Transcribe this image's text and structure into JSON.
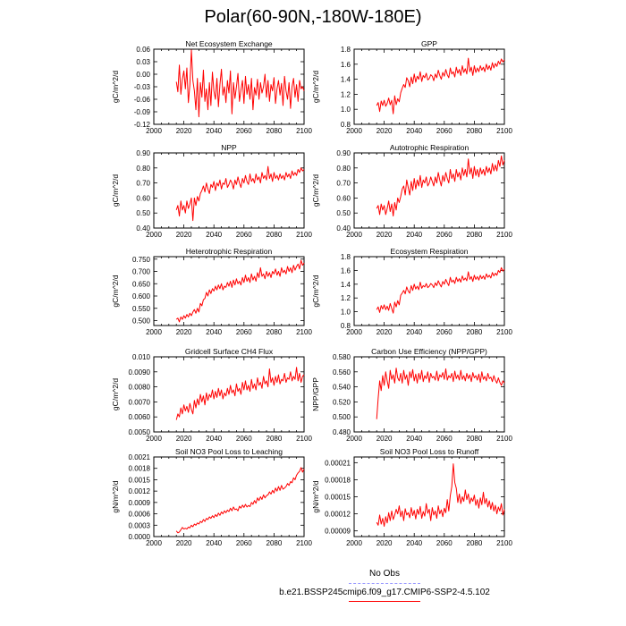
{
  "title": "Polar(60-90N,-180W-180E)",
  "colors": {
    "series": "#ff0000",
    "obs_line": "#9999ff",
    "axis": "#000000"
  },
  "legend": {
    "obs_label": "No Obs",
    "model_label": "b.e21.BSSP245cmip6.f09_g17.CMIP6-SSP2-4.5.102"
  },
  "chart_data": [
    {
      "type": "line",
      "title": "Net Ecosystem Exchange",
      "ylabel": "gC/m^2/d",
      "xlim": [
        2000,
        2100
      ],
      "ylim": [
        -0.12,
        0.06
      ],
      "xticks": [
        2000,
        2020,
        2040,
        2060,
        2080,
        2100
      ],
      "yticks": [
        -0.12,
        -0.09,
        -0.06,
        -0.03,
        0.0,
        0.03,
        0.06
      ],
      "ytick_labels": [
        "-0.12",
        "-0.09",
        "-0.06",
        "-0.03",
        "0.00",
        "0.03",
        "0.06"
      ],
      "start_year": 2015,
      "values": [
        -0.018,
        -0.042,
        0.022,
        -0.048,
        -0.012,
        0.008,
        -0.035,
        0.015,
        -0.068,
        -0.025,
        0.058,
        -0.015,
        -0.04,
        -0.085,
        -0.01,
        -0.102,
        -0.02,
        -0.055,
        0.01,
        -0.065,
        -0.035,
        -0.085,
        -0.02,
        -0.075,
        0.005,
        -0.04,
        -0.06,
        -0.01,
        -0.078,
        -0.025,
        0.012,
        -0.05,
        -0.03,
        -0.068,
        -0.015,
        -0.045,
        0.008,
        -0.095,
        -0.02,
        -0.058,
        -0.03,
        0.002,
        -0.065,
        -0.038,
        -0.015,
        -0.07,
        -0.005,
        -0.048,
        -0.025,
        -0.06,
        -0.01,
        -0.085,
        -0.032,
        -0.05,
        -0.012,
        -0.06,
        -0.02,
        -0.045,
        -0.03,
        0.0,
        -0.055,
        -0.015,
        -0.065,
        -0.025,
        -0.04,
        -0.008,
        -0.07,
        -0.035,
        -0.015,
        -0.05,
        -0.022,
        -0.075,
        -0.005,
        -0.04,
        -0.06,
        -0.02,
        -0.082,
        -0.03,
        -0.01,
        -0.055,
        -0.025,
        -0.065,
        -0.015,
        -0.035,
        -0.03,
        -0.04
      ]
    },
    {
      "type": "line",
      "title": "GPP",
      "ylabel": "gC/m^2/d",
      "xlim": [
        2000,
        2100
      ],
      "ylim": [
        0.8,
        1.8
      ],
      "xticks": [
        2000,
        2020,
        2040,
        2060,
        2080,
        2100
      ],
      "yticks": [
        0.8,
        1.0,
        1.2,
        1.4,
        1.6,
        1.8
      ],
      "ytick_labels": [
        "0.8",
        "1.0",
        "1.2",
        "1.4",
        "1.6",
        "1.8"
      ],
      "start_year": 2015,
      "values": [
        1.05,
        1.09,
        0.97,
        1.11,
        1.05,
        1.12,
        1.04,
        1.08,
        1.15,
        1.06,
        1.12,
        0.94,
        1.18,
        1.06,
        1.14,
        1.1,
        1.22,
        1.28,
        1.33,
        1.29,
        1.42,
        1.38,
        1.3,
        1.43,
        1.34,
        1.47,
        1.36,
        1.44,
        1.4,
        1.5,
        1.37,
        1.45,
        1.42,
        1.48,
        1.39,
        1.41,
        1.46,
        1.44,
        1.38,
        1.47,
        1.42,
        1.52,
        1.45,
        1.4,
        1.49,
        1.44,
        1.53,
        1.46,
        1.42,
        1.55,
        1.47,
        1.5,
        1.43,
        1.56,
        1.48,
        1.53,
        1.45,
        1.58,
        1.49,
        1.54,
        1.47,
        1.68,
        1.5,
        1.56,
        1.45,
        1.58,
        1.49,
        1.55,
        1.5,
        1.58,
        1.52,
        1.56,
        1.5,
        1.6,
        1.53,
        1.58,
        1.52,
        1.62,
        1.55,
        1.61,
        1.57,
        1.64,
        1.6,
        1.67,
        1.63,
        1.66
      ]
    },
    {
      "type": "line",
      "title": "NPP",
      "ylabel": "gC/m^2/d",
      "xlim": [
        2000,
        2100
      ],
      "ylim": [
        0.4,
        0.9
      ],
      "xticks": [
        2000,
        2020,
        2040,
        2060,
        2080,
        2100
      ],
      "yticks": [
        0.4,
        0.5,
        0.6,
        0.7,
        0.8,
        0.9
      ],
      "ytick_labels": [
        "0.40",
        "0.50",
        "0.60",
        "0.70",
        "0.80",
        "0.90"
      ],
      "start_year": 2015,
      "values": [
        0.52,
        0.55,
        0.48,
        0.58,
        0.52,
        0.55,
        0.5,
        0.58,
        0.53,
        0.56,
        0.6,
        0.45,
        0.6,
        0.55,
        0.61,
        0.58,
        0.63,
        0.65,
        0.68,
        0.64,
        0.7,
        0.66,
        0.63,
        0.69,
        0.67,
        0.71,
        0.65,
        0.7,
        0.68,
        0.72,
        0.66,
        0.7,
        0.69,
        0.73,
        0.67,
        0.69,
        0.72,
        0.7,
        0.66,
        0.72,
        0.69,
        0.74,
        0.7,
        0.67,
        0.73,
        0.7,
        0.75,
        0.71,
        0.69,
        0.76,
        0.71,
        0.73,
        0.7,
        0.76,
        0.72,
        0.74,
        0.7,
        0.77,
        0.73,
        0.75,
        0.72,
        0.81,
        0.73,
        0.76,
        0.71,
        0.77,
        0.73,
        0.75,
        0.72,
        0.76,
        0.73,
        0.75,
        0.72,
        0.77,
        0.74,
        0.76,
        0.73,
        0.78,
        0.75,
        0.77,
        0.75,
        0.79,
        0.77,
        0.8,
        0.78,
        0.79
      ]
    },
    {
      "type": "line",
      "title": "Autotrophic Respiration",
      "ylabel": "gC/m^2/d",
      "xlim": [
        2000,
        2100
      ],
      "ylim": [
        0.4,
        0.9
      ],
      "xticks": [
        2000,
        2020,
        2040,
        2060,
        2080,
        2100
      ],
      "yticks": [
        0.4,
        0.5,
        0.6,
        0.7,
        0.8,
        0.9
      ],
      "ytick_labels": [
        "0.40",
        "0.50",
        "0.60",
        "0.70",
        "0.80",
        "0.90"
      ],
      "start_year": 2015,
      "values": [
        0.53,
        0.55,
        0.49,
        0.56,
        0.52,
        0.55,
        0.49,
        0.53,
        0.58,
        0.51,
        0.56,
        0.48,
        0.57,
        0.52,
        0.6,
        0.57,
        0.61,
        0.66,
        0.68,
        0.62,
        0.72,
        0.67,
        0.62,
        0.71,
        0.65,
        0.73,
        0.66,
        0.72,
        0.68,
        0.75,
        0.67,
        0.72,
        0.7,
        0.74,
        0.68,
        0.7,
        0.74,
        0.71,
        0.68,
        0.74,
        0.7,
        0.77,
        0.72,
        0.68,
        0.75,
        0.71,
        0.77,
        0.73,
        0.7,
        0.79,
        0.73,
        0.76,
        0.71,
        0.79,
        0.74,
        0.77,
        0.72,
        0.8,
        0.75,
        0.79,
        0.74,
        0.86,
        0.76,
        0.8,
        0.73,
        0.81,
        0.75,
        0.79,
        0.74,
        0.8,
        0.76,
        0.79,
        0.75,
        0.81,
        0.77,
        0.8,
        0.76,
        0.83,
        0.78,
        0.82,
        0.78,
        0.85,
        0.81,
        0.88,
        0.82,
        0.85
      ]
    },
    {
      "type": "line",
      "title": "Heterotrophic Respiration",
      "ylabel": "gC/m^2/d",
      "xlim": [
        2000,
        2100
      ],
      "ylim": [
        0.48,
        0.76
      ],
      "xticks": [
        2000,
        2020,
        2040,
        2060,
        2080,
        2100
      ],
      "yticks": [
        0.5,
        0.55,
        0.6,
        0.65,
        0.7,
        0.75
      ],
      "ytick_labels": [
        "0.500",
        "0.550",
        "0.600",
        "0.650",
        "0.700",
        "0.750"
      ],
      "start_year": 2015,
      "values": [
        0.505,
        0.51,
        0.495,
        0.515,
        0.505,
        0.52,
        0.51,
        0.525,
        0.515,
        0.53,
        0.52,
        0.535,
        0.545,
        0.53,
        0.55,
        0.535,
        0.57,
        0.56,
        0.585,
        0.59,
        0.615,
        0.6,
        0.625,
        0.61,
        0.63,
        0.62,
        0.64,
        0.625,
        0.645,
        0.63,
        0.65,
        0.625,
        0.64,
        0.635,
        0.655,
        0.64,
        0.66,
        0.635,
        0.665,
        0.645,
        0.67,
        0.65,
        0.66,
        0.645,
        0.675,
        0.655,
        0.685,
        0.66,
        0.675,
        0.655,
        0.69,
        0.665,
        0.68,
        0.66,
        0.695,
        0.675,
        0.715,
        0.68,
        0.69,
        0.67,
        0.7,
        0.68,
        0.695,
        0.675,
        0.7,
        0.69,
        0.71,
        0.685,
        0.7,
        0.68,
        0.715,
        0.695,
        0.705,
        0.69,
        0.72,
        0.7,
        0.715,
        0.695,
        0.725,
        0.705,
        0.72,
        0.73,
        0.71,
        0.745,
        0.725,
        0.735
      ]
    },
    {
      "type": "line",
      "title": "Ecosystem Respiration",
      "ylabel": "gC/m^2/d",
      "xlim": [
        2000,
        2100
      ],
      "ylim": [
        0.8,
        1.8
      ],
      "xticks": [
        2000,
        2020,
        2040,
        2060,
        2080,
        2100
      ],
      "yticks": [
        0.8,
        1.0,
        1.2,
        1.4,
        1.6,
        1.8
      ],
      "ytick_labels": [
        "0.8",
        "1.0",
        "1.2",
        "1.4",
        "1.6",
        "1.8"
      ],
      "start_year": 2015,
      "values": [
        1.03,
        1.07,
        0.99,
        1.09,
        1.04,
        1.1,
        1.03,
        1.08,
        1.02,
        1.12,
        1.05,
        0.98,
        1.14,
        1.07,
        1.16,
        1.1,
        1.24,
        1.27,
        1.31,
        1.26,
        1.36,
        1.3,
        1.27,
        1.38,
        1.31,
        1.4,
        1.33,
        1.37,
        1.32,
        1.43,
        1.34,
        1.38,
        1.36,
        1.41,
        1.35,
        1.37,
        1.41,
        1.39,
        1.35,
        1.42,
        1.38,
        1.45,
        1.4,
        1.36,
        1.44,
        1.4,
        1.47,
        1.42,
        1.38,
        1.5,
        1.43,
        1.46,
        1.41,
        1.5,
        1.44,
        1.48,
        1.43,
        1.52,
        1.46,
        1.49,
        1.45,
        1.58,
        1.47,
        1.51,
        1.44,
        1.53,
        1.47,
        1.51,
        1.46,
        1.53,
        1.48,
        1.52,
        1.47,
        1.55,
        1.5,
        1.53,
        1.49,
        1.57,
        1.52,
        1.56,
        1.53,
        1.6,
        1.57,
        1.64,
        1.59,
        1.62
      ]
    },
    {
      "type": "line",
      "title": "Gridcell Surface CH4 Flux",
      "ylabel": "gC/m^2/d",
      "xlim": [
        2000,
        2100
      ],
      "ylim": [
        0.005,
        0.01
      ],
      "xticks": [
        2000,
        2020,
        2040,
        2060,
        2080,
        2100
      ],
      "yticks": [
        0.005,
        0.006,
        0.007,
        0.008,
        0.009,
        0.01
      ],
      "ytick_labels": [
        "0.0050",
        "0.0060",
        "0.0070",
        "0.0080",
        "0.0090",
        "0.010"
      ],
      "start_year": 2015,
      "values": [
        0.0058,
        0.0062,
        0.006,
        0.0066,
        0.0062,
        0.0068,
        0.0064,
        0.0067,
        0.0063,
        0.0069,
        0.0065,
        0.0062,
        0.0071,
        0.0066,
        0.0072,
        0.0068,
        0.0075,
        0.007,
        0.0074,
        0.0068,
        0.0076,
        0.0071,
        0.0075,
        0.0073,
        0.0078,
        0.0072,
        0.0077,
        0.0073,
        0.0079,
        0.0074,
        0.0078,
        0.0072,
        0.0076,
        0.0074,
        0.0079,
        0.0075,
        0.0081,
        0.0076,
        0.0078,
        0.0074,
        0.0082,
        0.0077,
        0.0079,
        0.0075,
        0.0083,
        0.0078,
        0.0084,
        0.0078,
        0.0081,
        0.0077,
        0.0085,
        0.0079,
        0.0082,
        0.0078,
        0.0086,
        0.0081,
        0.0083,
        0.0079,
        0.0087,
        0.0082,
        0.0084,
        0.008,
        0.0092,
        0.0083,
        0.0086,
        0.0081,
        0.0087,
        0.0083,
        0.0088,
        0.0082,
        0.0085,
        0.0084,
        0.0089,
        0.0083,
        0.0086,
        0.0085,
        0.009,
        0.0084,
        0.0087,
        0.0085,
        0.0093,
        0.0084,
        0.0089,
        0.0083,
        0.0087,
        0.0088
      ]
    },
    {
      "type": "line",
      "title": "Carbon Use Efficiency (NPP/GPP)",
      "ylabel": "NPP/GPP",
      "xlim": [
        2000,
        2100
      ],
      "ylim": [
        0.48,
        0.58
      ],
      "xticks": [
        2000,
        2020,
        2040,
        2060,
        2080,
        2100
      ],
      "yticks": [
        0.48,
        0.5,
        0.52,
        0.54,
        0.56,
        0.58
      ],
      "ytick_labels": [
        "0.480",
        "0.500",
        "0.520",
        "0.540",
        "0.560",
        "0.580"
      ],
      "start_year": 2015,
      "values": [
        0.497,
        0.525,
        0.548,
        0.535,
        0.555,
        0.542,
        0.56,
        0.548,
        0.538,
        0.562,
        0.55,
        0.556,
        0.545,
        0.565,
        0.552,
        0.548,
        0.558,
        0.545,
        0.562,
        0.55,
        0.556,
        0.542,
        0.56,
        0.552,
        0.563,
        0.548,
        0.557,
        0.545,
        0.558,
        0.55,
        0.562,
        0.547,
        0.555,
        0.551,
        0.56,
        0.546,
        0.558,
        0.552,
        0.554,
        0.549,
        0.561,
        0.548,
        0.556,
        0.553,
        0.559,
        0.55,
        0.564,
        0.549,
        0.555,
        0.552,
        0.558,
        0.547,
        0.561,
        0.551,
        0.556,
        0.549,
        0.562,
        0.55,
        0.555,
        0.548,
        0.558,
        0.551,
        0.556,
        0.547,
        0.559,
        0.552,
        0.555,
        0.549,
        0.557,
        0.546,
        0.56,
        0.55,
        0.554,
        0.548,
        0.558,
        0.551,
        0.553,
        0.547,
        0.555,
        0.549,
        0.545,
        0.552,
        0.546,
        0.542,
        0.548,
        0.545
      ]
    },
    {
      "type": "line",
      "title": "Soil NO3 Pool Loss to Leaching",
      "ylabel": "gN/m^2/d",
      "xlim": [
        2000,
        2100
      ],
      "ylim": [
        0.0,
        0.0021
      ],
      "xticks": [
        2000,
        2020,
        2040,
        2060,
        2080,
        2100
      ],
      "yticks": [
        0.0,
        0.0003,
        0.0006,
        0.0009,
        0.0012,
        0.0015,
        0.0018,
        0.0021
      ],
      "ytick_labels": [
        "0.0000",
        "0.0003",
        "0.0006",
        "0.0009",
        "0.0012",
        "0.0015",
        "0.0018",
        "0.0021"
      ],
      "start_year": 2015,
      "values": [
        0.00015,
        0.0001,
        0.00012,
        0.00018,
        0.00024,
        0.0002,
        0.00022,
        0.0002,
        0.00025,
        0.00023,
        0.0003,
        0.00026,
        0.00033,
        0.0003,
        0.00036,
        0.00033,
        0.0004,
        0.00037,
        0.00045,
        0.0004,
        0.00048,
        0.00045,
        0.00052,
        0.00048,
        0.00055,
        0.0005,
        0.00058,
        0.00053,
        0.00062,
        0.00056,
        0.00065,
        0.0006,
        0.00068,
        0.00063,
        0.0007,
        0.00066,
        0.00075,
        0.00068,
        0.00078,
        0.00071,
        0.00073,
        0.00068,
        0.0008,
        0.00075,
        0.00083,
        0.00077,
        0.00085,
        0.00078,
        0.00082,
        0.00079,
        0.0009,
        0.00085,
        0.00095,
        0.00088,
        0.00102,
        0.00095,
        0.00105,
        0.00098,
        0.0011,
        0.00102,
        0.00108,
        0.0011,
        0.00118,
        0.00112,
        0.00122,
        0.00115,
        0.00128,
        0.0012,
        0.00132,
        0.00122,
        0.00135,
        0.00125,
        0.00128,
        0.00132,
        0.0014,
        0.00135,
        0.00145,
        0.00142,
        0.00155,
        0.0015,
        0.00162,
        0.00168,
        0.00172,
        0.00182,
        0.0017,
        0.00178
      ]
    },
    {
      "type": "line",
      "title": "Soil NO3 Pool Loss to Runoff",
      "ylabel": "gN/m^2/d",
      "xlim": [
        2000,
        2100
      ],
      "ylim": [
        8e-05,
        0.00022
      ],
      "xticks": [
        2000,
        2020,
        2040,
        2060,
        2080,
        2100
      ],
      "yticks": [
        9e-05,
        0.00012,
        0.00015,
        0.00018,
        0.00021
      ],
      "ytick_labels": [
        "0.00009",
        "0.00012",
        "0.00015",
        "0.00018",
        "0.00021"
      ],
      "start_year": 2015,
      "values": [
        0.000105,
        0.0001,
        0.000118,
        0.000102,
        0.000112,
        9.8e-05,
        0.000115,
        0.000104,
        0.000122,
        0.000108,
        0.000125,
        0.00011,
        0.000118,
        0.000128,
        0.00012,
        0.000134,
        0.000115,
        0.000125,
        0.000108,
        0.000129,
        0.000118,
        0.000122,
        0.000113,
        0.000131,
        0.000117,
        0.000126,
        0.000111,
        0.000128,
        0.000119,
        0.000133,
        0.000112,
        0.000124,
        0.000116,
        0.000138,
        0.000121,
        0.000128,
        0.000108,
        0.000131,
        0.000118,
        0.000125,
        0.000112,
        0.000134,
        0.00012,
        0.000127,
        0.000115,
        0.00013,
        0.000122,
        0.000145,
        0.000125,
        0.000152,
        0.000168,
        0.000208,
        0.000175,
        0.000165,
        0.00014,
        0.000155,
        0.000138,
        0.00015,
        0.000142,
        0.000162,
        0.000145,
        0.000155,
        0.000138,
        0.000148,
        0.000142,
        0.000153,
        0.000135,
        0.000145,
        0.00013,
        0.000148,
        0.000136,
        0.000158,
        0.000138,
        0.000147,
        0.000132,
        0.000143,
        0.000128,
        0.00014,
        0.000125,
        0.000135,
        0.00012,
        0.000132,
        0.000125,
        0.000138,
        0.000118,
        0.000128
      ]
    }
  ]
}
